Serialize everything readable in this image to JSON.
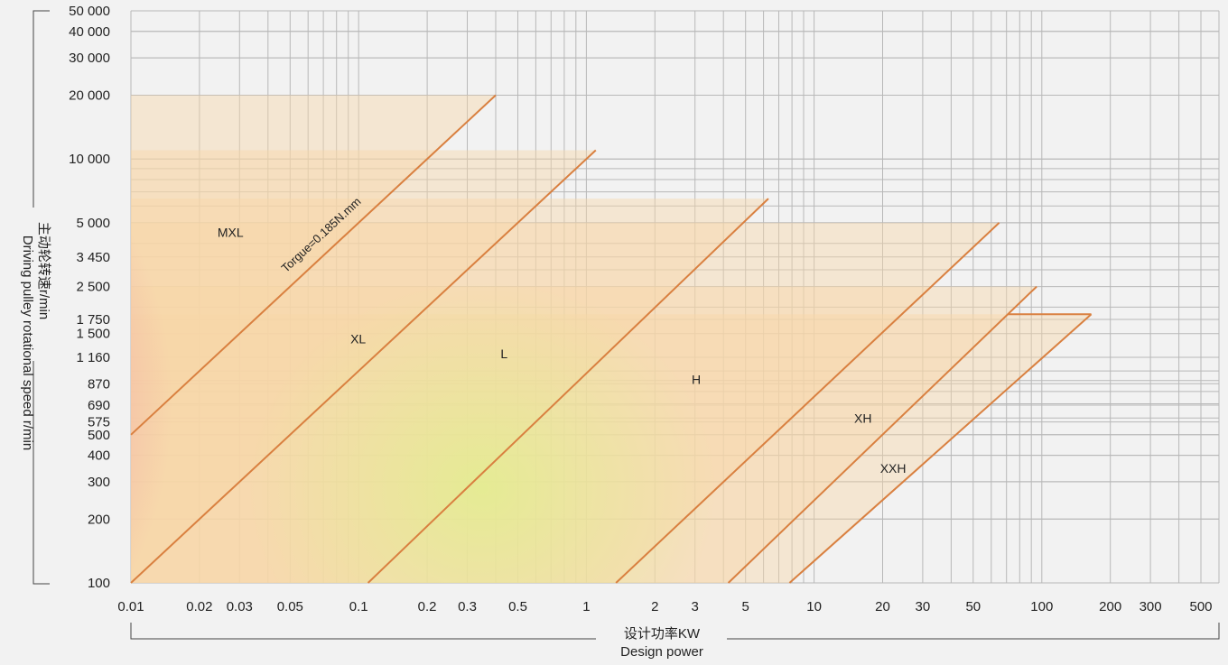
{
  "chart_data": {
    "type": "area",
    "title": "",
    "xlabel_cn": "设计功率KW",
    "xlabel": "Design power",
    "ylabel_cn": "主动轮转速r/min",
    "ylabel": "Driving pulley rotational speed r/min",
    "x_scale": "log",
    "y_scale": "log",
    "xlim": [
      0.01,
      600
    ],
    "ylim": [
      100,
      50000
    ],
    "grid": true,
    "x_ticks": [
      {
        "value": 0.01,
        "label": "0.01"
      },
      {
        "value": 0.02,
        "label": "0.02"
      },
      {
        "value": 0.03,
        "label": "0.03"
      },
      {
        "value": 0.05,
        "label": "0.05"
      },
      {
        "value": 0.1,
        "label": "0.1"
      },
      {
        "value": 0.2,
        "label": "0.2"
      },
      {
        "value": 0.3,
        "label": "0.3"
      },
      {
        "value": 0.5,
        "label": "0.5"
      },
      {
        "value": 1,
        "label": "1"
      },
      {
        "value": 2,
        "label": "2"
      },
      {
        "value": 3,
        "label": "3"
      },
      {
        "value": 5,
        "label": "5"
      },
      {
        "value": 10,
        "label": "10"
      },
      {
        "value": 20,
        "label": "20"
      },
      {
        "value": 30,
        "label": "30"
      },
      {
        "value": 50,
        "label": "50"
      },
      {
        "value": 100,
        "label": "100"
      },
      {
        "value": 200,
        "label": "200"
      },
      {
        "value": 300,
        "label": "300"
      },
      {
        "value": 500,
        "label": "500"
      }
    ],
    "y_ticks": [
      {
        "value": 100,
        "label": "100"
      },
      {
        "value": 200,
        "label": "200"
      },
      {
        "value": 300,
        "label": "300"
      },
      {
        "value": 400,
        "label": "400"
      },
      {
        "value": 500,
        "label": "500"
      },
      {
        "value": 575,
        "label": "575"
      },
      {
        "value": 690,
        "label": "690"
      },
      {
        "value": 870,
        "label": "870"
      },
      {
        "value": 1160,
        "label": "1 160"
      },
      {
        "value": 1500,
        "label": "1 500"
      },
      {
        "value": 1750,
        "label": "1 750"
      },
      {
        "value": 2500,
        "label": "2 500"
      },
      {
        "value": 3450,
        "label": "3 450"
      },
      {
        "value": 5000,
        "label": "5 000"
      },
      {
        "value": 10000,
        "label": "10 000"
      },
      {
        "value": 20000,
        "label": "20 000"
      },
      {
        "value": 30000,
        "label": "30 000"
      },
      {
        "value": 40000,
        "label": "40 000"
      },
      {
        "value": 50000,
        "label": "50 000"
      }
    ],
    "series": [
      {
        "name": "MXL",
        "max_rpm": 20000,
        "line": [
          {
            "x": 0.01,
            "y": 500
          },
          {
            "x": 0.4,
            "y": 20000
          }
        ],
        "label_at": {
          "x": 0.024,
          "y": 4300
        }
      },
      {
        "name": "XL",
        "max_rpm": 11000,
        "line": [
          {
            "x": 0.01,
            "y": 100
          },
          {
            "x": 1.1,
            "y": 11000
          }
        ],
        "label_at": {
          "x": 0.092,
          "y": 1350
        }
      },
      {
        "name": "L",
        "max_rpm": 6500,
        "line": [
          {
            "x": 0.11,
            "y": 100
          },
          {
            "x": 6.3,
            "y": 6500
          }
        ],
        "label_at": {
          "x": 0.42,
          "y": 1150
        }
      },
      {
        "name": "H",
        "max_rpm": 5000,
        "line": [
          {
            "x": 1.35,
            "y": 100
          },
          {
            "x": 65,
            "y": 5000
          }
        ],
        "label_at": {
          "x": 2.9,
          "y": 870
        }
      },
      {
        "name": "XH",
        "max_rpm": 2500,
        "line": [
          {
            "x": 4.2,
            "y": 100
          },
          {
            "x": 95,
            "y": 2500
          }
        ],
        "label_at": {
          "x": 15,
          "y": 570
        }
      },
      {
        "name": "XXH",
        "max_rpm": 1850,
        "line": [
          {
            "x": 7.8,
            "y": 100
          },
          {
            "x": 165,
            "y": 1850
          }
        ],
        "label_at": {
          "x": 19.5,
          "y": 330
        }
      }
    ],
    "annotations": [
      {
        "text": "Torgue=0.185N.mm",
        "x": 0.048,
        "y": 2900,
        "along_series": "MXL"
      }
    ],
    "colors": {
      "zone_fill": "#f8d7a8",
      "boundary_line": "#d98040",
      "grid": "#b8b8b8",
      "background": "#f2f2f2",
      "heat_pink": "#f07aa0",
      "heat_yellow": "#e4ec92"
    }
  }
}
